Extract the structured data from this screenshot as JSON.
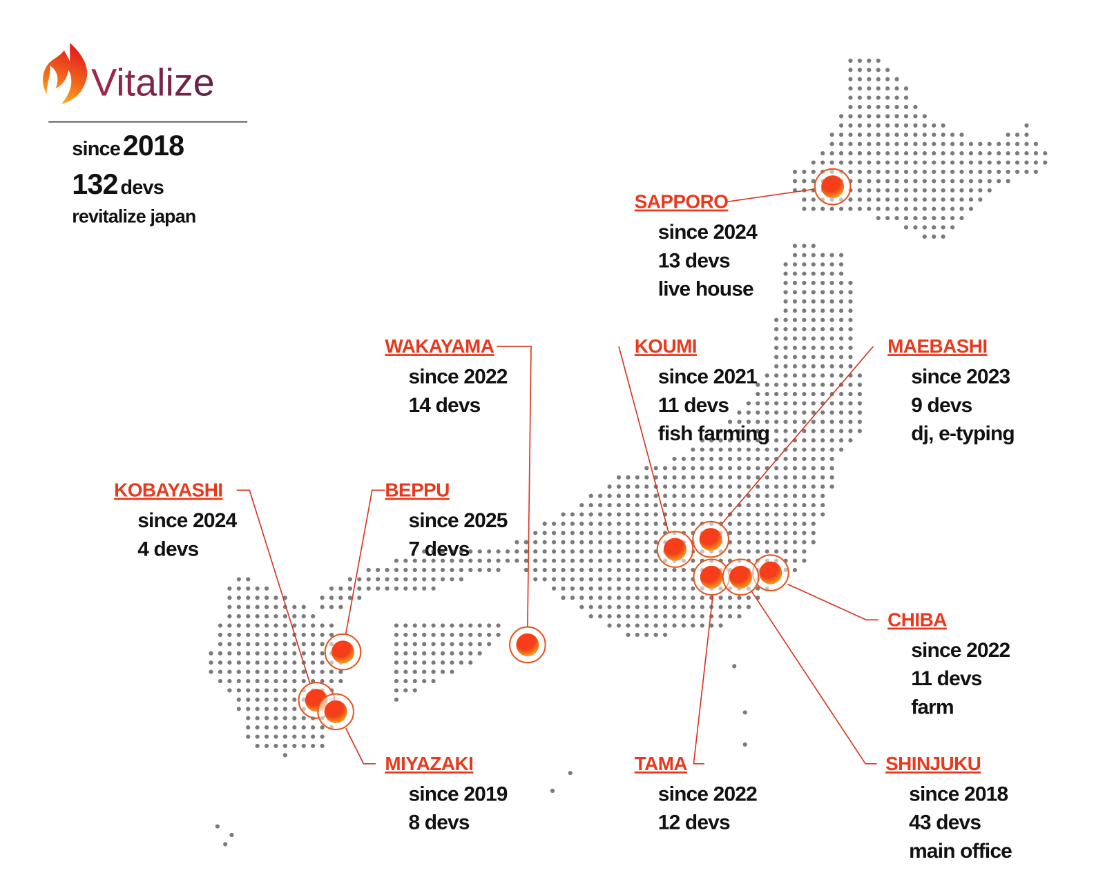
{
  "header": {
    "brand": "Vitalize",
    "since_label": "since",
    "since_year": "2018",
    "devs_count": "132",
    "devs_label": "devs",
    "tagline": "revitalize japan"
  },
  "locations": [
    {
      "name": "SAPPORO",
      "lines": [
        "since 2024",
        "13 devs",
        "live house"
      ]
    },
    {
      "name": "WAKAYAMA",
      "lines": [
        "since 2022",
        "14 devs"
      ]
    },
    {
      "name": "KOUMI",
      "lines": [
        "since 2021",
        "11 devs",
        "fish farming"
      ]
    },
    {
      "name": "MAEBASHI",
      "lines": [
        "since 2023",
        "9 devs",
        "dj, e-typing"
      ]
    },
    {
      "name": "KOBAYASHI",
      "lines": [
        "since 2024",
        "4 devs"
      ]
    },
    {
      "name": "BEPPU",
      "lines": [
        "since 2025",
        "7 devs"
      ]
    },
    {
      "name": "CHIBA",
      "lines": [
        "since 2022",
        "11 devs",
        "farm"
      ]
    },
    {
      "name": "MIYAZAKI",
      "lines": [
        "since 2019",
        "8 devs"
      ]
    },
    {
      "name": "TAMA",
      "lines": [
        "since 2022",
        "12 devs"
      ]
    },
    {
      "name": "SHINJUKU",
      "lines": [
        "since 2018",
        "43 devs",
        "main office"
      ]
    }
  ]
}
